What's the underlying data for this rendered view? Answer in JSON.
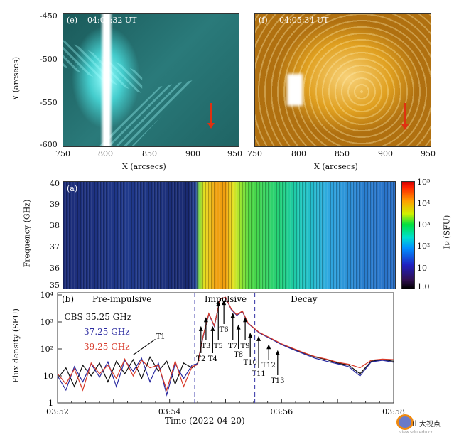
{
  "panel_e": {
    "label": "(e)",
    "time": "04:05:32 UT",
    "xlabel": "X (arcsecs)",
    "ylabel": "Y (arcsecs)",
    "xticks": [
      "750",
      "800",
      "850",
      "900",
      "950"
    ],
    "yticks": [
      "-450",
      "-500",
      "-550",
      "-600"
    ]
  },
  "panel_f": {
    "label": "(f)",
    "time": "04:05:34 UT",
    "xlabel": "X (arcsecs)",
    "xticks": [
      "750",
      "800",
      "850",
      "900",
      "950"
    ]
  },
  "panel_a": {
    "label": "(a)",
    "ylabel": "Frequency (GHz)",
    "yticks": [
      "40",
      "39",
      "38",
      "37",
      "36",
      "35"
    ],
    "colorbar_label": "Iν (SFU)",
    "colorbar_ticks": [
      "10⁵",
      "10⁴",
      "10³",
      "10²",
      "10",
      "1.0"
    ]
  },
  "watermark": {
    "name": "山大视点",
    "url": "view.sdu.edu.cn"
  },
  "chart_data": {
    "type": "line",
    "label": "(b)",
    "title": "",
    "xlabel": "Time (2022-04-20)",
    "ylabel": "Flux density (SFU)",
    "xticks": [
      "03:52",
      "03:54",
      "03:56",
      "03:58"
    ],
    "xlim_minutes_after_0352": [
      0,
      6
    ],
    "yscale": "log",
    "ylim": [
      1,
      10000
    ],
    "yticks": [
      "1",
      "10",
      "10²",
      "10³",
      "10⁴"
    ],
    "phases": [
      "Pre-impulsive",
      "Impulsive",
      "Decay"
    ],
    "phase_boundaries_minutes": [
      2.45,
      3.52
    ],
    "legend": [
      "CBS 35.25 GHz",
      "37.25 GHz",
      "39.25 GHz"
    ],
    "x": [
      0,
      0.15,
      0.3,
      0.45,
      0.6,
      0.75,
      0.9,
      1.05,
      1.2,
      1.35,
      1.5,
      1.65,
      1.8,
      1.95,
      2.1,
      2.25,
      2.4,
      2.5,
      2.6,
      2.7,
      2.8,
      2.9,
      3.0,
      3.1,
      3.2,
      3.3,
      3.4,
      3.5,
      3.6,
      3.8,
      4.0,
      4.2,
      4.4,
      4.6,
      4.8,
      5.0,
      5.2,
      5.4,
      5.6,
      5.8,
      6.0
    ],
    "series": [
      {
        "name": "35.25 GHz",
        "color": "#111111",
        "values": [
          8,
          20,
          4,
          25,
          10,
          30,
          6,
          35,
          12,
          40,
          8,
          50,
          15,
          35,
          5,
          30,
          20,
          30,
          300,
          2000,
          700,
          7000,
          8000,
          3000,
          1800,
          2500,
          900,
          600,
          400,
          250,
          150,
          100,
          70,
          50,
          40,
          30,
          25,
          12,
          35,
          40,
          35
        ]
      },
      {
        "name": "37.25 GHz",
        "color": "#2a2aa0",
        "values": [
          10,
          3,
          22,
          6,
          28,
          9,
          33,
          4,
          38,
          15,
          45,
          6,
          30,
          2,
          28,
          8,
          25,
          28,
          290,
          1950,
          680,
          7200,
          8100,
          2900,
          1750,
          2450,
          880,
          590,
          390,
          240,
          145,
          95,
          65,
          45,
          35,
          28,
          22,
          10,
          33,
          38,
          32
        ]
      },
      {
        "name": "39.25 GHz",
        "color": "#d83a2a",
        "values": [
          12,
          5,
          18,
          3,
          30,
          12,
          25,
          8,
          42,
          10,
          38,
          20,
          25,
          3,
          35,
          4,
          22,
          26,
          310,
          2050,
          720,
          7100,
          8200,
          3050,
          1850,
          2550,
          920,
          610,
          410,
          255,
          155,
          105,
          72,
          52,
          42,
          32,
          27,
          20,
          38,
          42,
          40
        ]
      }
    ],
    "annotations": [
      {
        "label": "T1",
        "t": 1.3,
        "v": 50
      },
      {
        "label": "T2",
        "t": 2.56,
        "v": 700
      },
      {
        "label": "T3",
        "t": 2.65,
        "v": 1500
      },
      {
        "label": "T4",
        "t": 2.77,
        "v": 700
      },
      {
        "label": "T5",
        "t": 2.87,
        "v": 6000
      },
      {
        "label": "T6",
        "t": 2.97,
        "v": 6500
      },
      {
        "label": "T7",
        "t": 3.13,
        "v": 2200
      },
      {
        "label": "T8",
        "t": 3.23,
        "v": 800
      },
      {
        "label": "T9",
        "t": 3.35,
        "v": 1500
      },
      {
        "label": "T10",
        "t": 3.44,
        "v": 400
      },
      {
        "label": "T11",
        "t": 3.59,
        "v": 300
      },
      {
        "label": "T12",
        "t": 3.77,
        "v": 150
      },
      {
        "label": "T13",
        "t": 3.93,
        "v": 90
      }
    ]
  }
}
